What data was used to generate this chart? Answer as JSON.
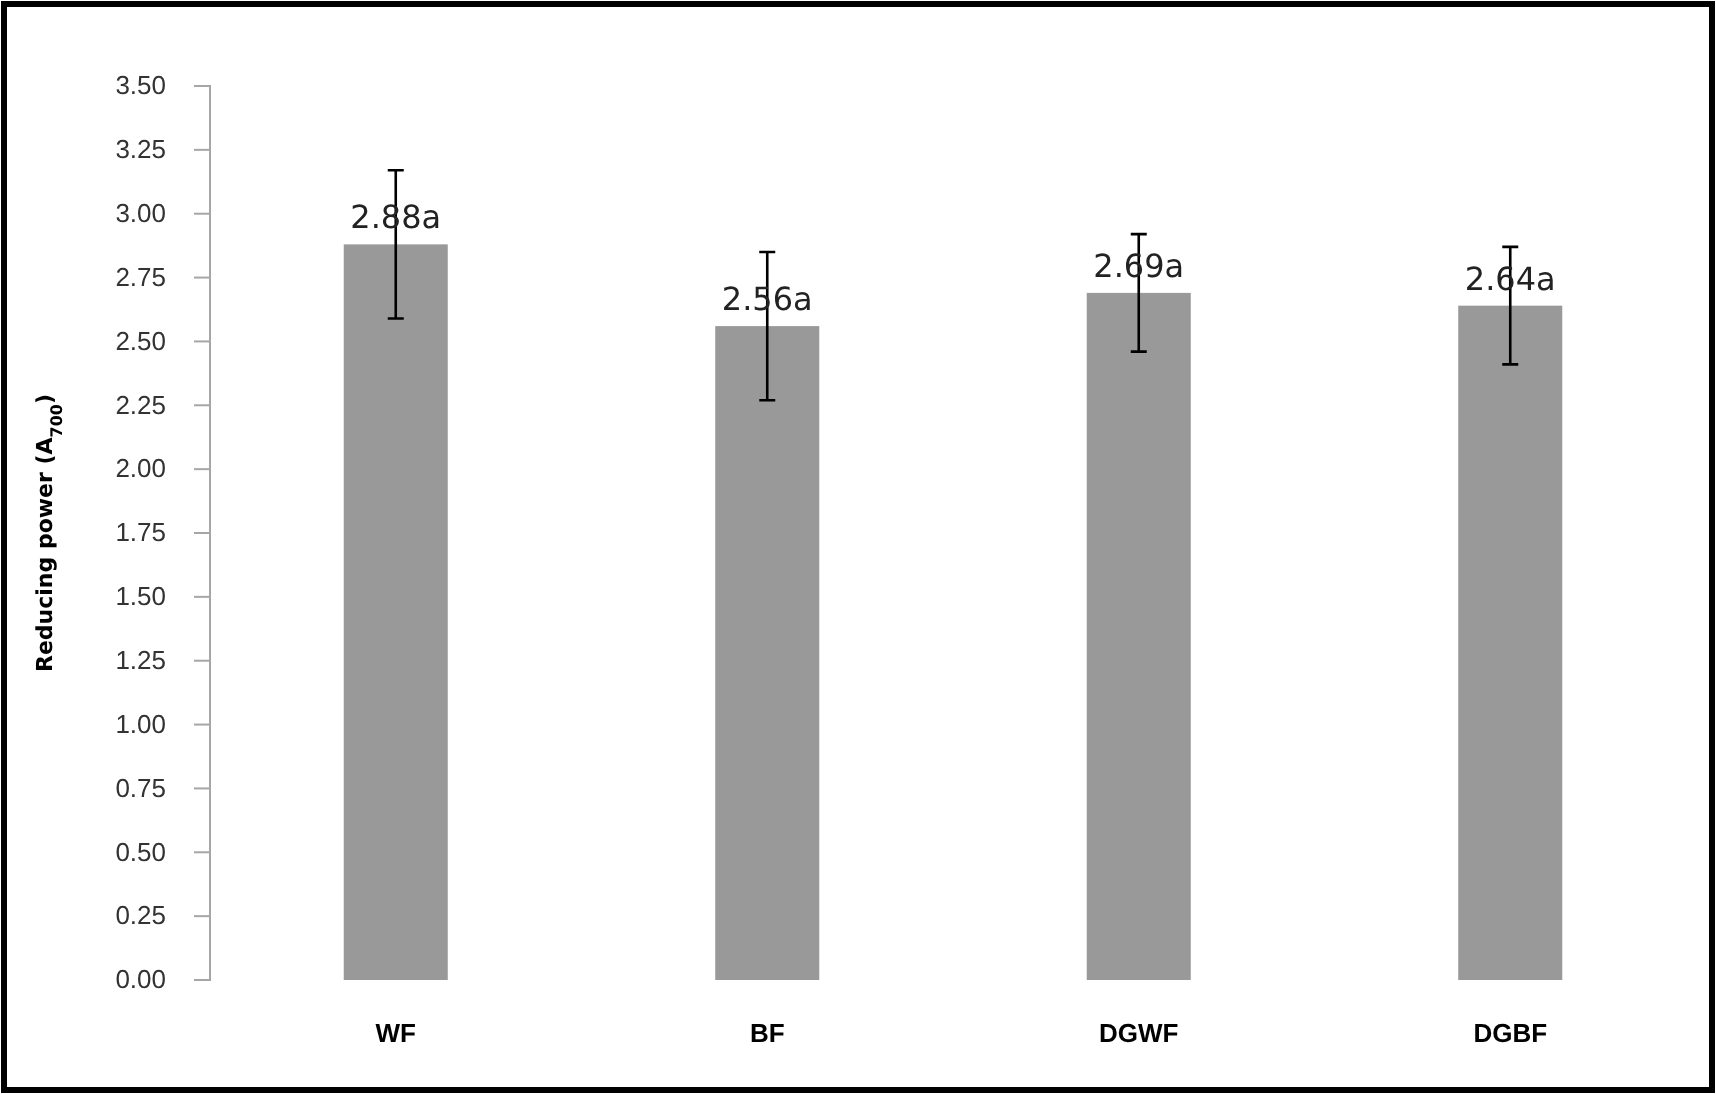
{
  "chart_data": {
    "type": "bar",
    "ylabel": "Reducing power (A$_{700}$)",
    "categories": [
      "WF",
      "BF",
      "DGWF",
      "DGBF"
    ],
    "values": [
      2.88,
      2.56,
      2.69,
      2.64
    ],
    "errors": [
      0.29,
      0.29,
      0.23,
      0.23
    ],
    "value_labels": [
      "2.88a",
      "2.56a",
      "2.69a",
      "2.64a"
    ],
    "color": "#999999",
    "ylim": [
      0,
      3.5
    ],
    "yticks": [
      {
        "value": 0,
        "label": "0.00"
      },
      {
        "value": 0.25,
        "label": "0.25"
      },
      {
        "value": 0.5,
        "label": "0.50"
      },
      {
        "value": 0.75,
        "label": "0.75"
      },
      {
        "value": 1,
        "label": "1.00"
      },
      {
        "value": 1.25,
        "label": "1.25"
      },
      {
        "value": 1.5,
        "label": "1.50"
      },
      {
        "value": 1.75,
        "label": "1.75"
      },
      {
        "value": 2,
        "label": "2.00"
      },
      {
        "value": 2.25,
        "label": "2.25"
      },
      {
        "value": 2.5,
        "label": "2.50"
      },
      {
        "value": 2.75,
        "label": "2.75"
      },
      {
        "value": 3,
        "label": "3.00"
      },
      {
        "value": 3.25,
        "label": "3.25"
      },
      {
        "value": 3.5,
        "label": "3.50"
      }
    ],
    "grid": false
  }
}
